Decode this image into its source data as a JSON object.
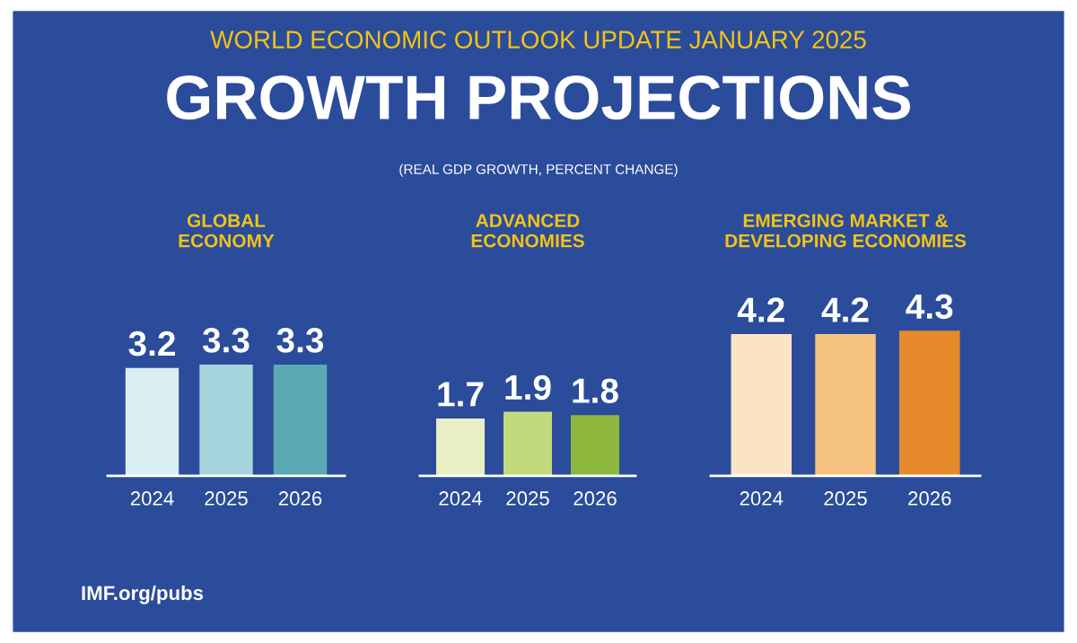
{
  "chart_data": [
    {
      "type": "bar",
      "title": "GLOBAL\nECONOMY",
      "categories": [
        "2024",
        "2025",
        "2026"
      ],
      "values": [
        3.2,
        3.3,
        3.3
      ],
      "colors": [
        "#d8eef1",
        "#a6d5dd",
        "#5ba9b3"
      ],
      "data_labels": true,
      "grid": false,
      "legend": false,
      "tick_labels": "x",
      "annotations": [
        "WORLD ECONOMIC OUTLOOK UPDATE JANUARY 2025",
        "GROWTH PROJECTIONS",
        "(REAL GDP GROWTH, PERCENT CHANGE)",
        "IMF.org/pubs"
      ]
    },
    {
      "type": "bar",
      "title": "ADVANCED\nECONOMIES",
      "categories": [
        "2024",
        "2025",
        "2026"
      ],
      "values": [
        1.7,
        1.9,
        1.8
      ],
      "colors": [
        "#e7efc3",
        "#c3da7c",
        "#8db83d"
      ],
      "data_labels": true,
      "grid": false,
      "legend": false,
      "tick_labels": "x"
    },
    {
      "type": "bar",
      "title": "EMERGING MARKET &\nDEVELOPING ECONOMIES",
      "categories": [
        "2024",
        "2025",
        "2026"
      ],
      "values": [
        4.2,
        4.2,
        4.3
      ],
      "colors": [
        "#fbe4c4",
        "#f5c27f",
        "#e78a2c"
      ],
      "data_labels": true,
      "grid": false,
      "legend": false,
      "tick_labels": "x"
    }
  ]
}
